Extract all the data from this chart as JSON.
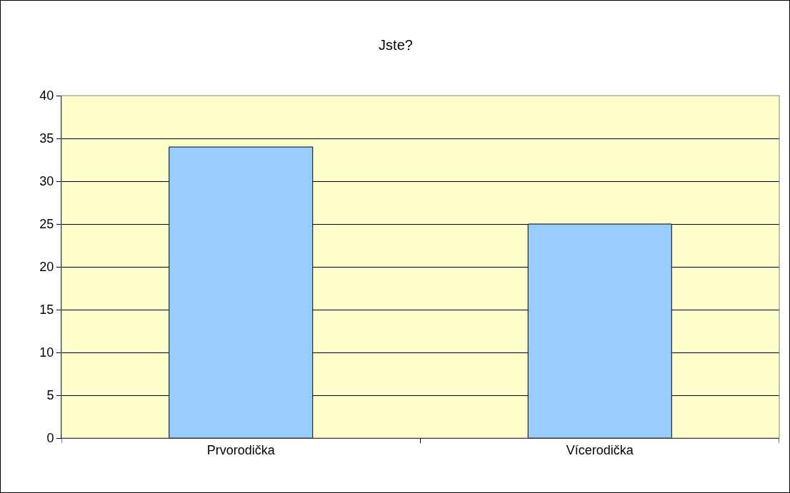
{
  "chart_data": {
    "type": "bar",
    "title": "Jste?",
    "categories": [
      "Prvorodička",
      "Vícerodička"
    ],
    "values": [
      34,
      25
    ],
    "color": "#99ccff",
    "ylim": [
      0,
      40
    ],
    "yticks": [
      0,
      5,
      10,
      15,
      20,
      25,
      30,
      35,
      40
    ],
    "grid": "y"
  }
}
